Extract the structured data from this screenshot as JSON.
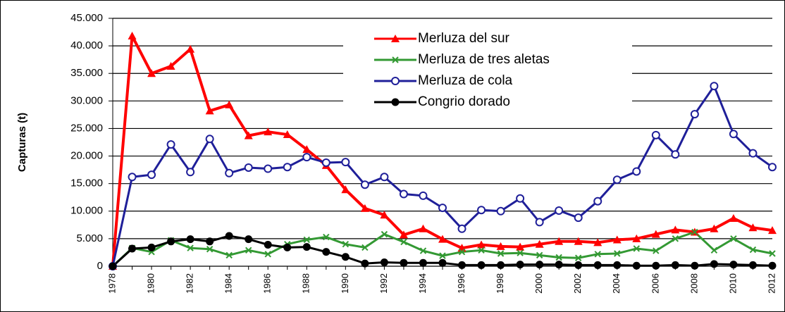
{
  "chart_data": {
    "type": "line",
    "y_label": "Capturas (t)",
    "categories": [
      "1978",
      null,
      "1980",
      null,
      "1982",
      null,
      "1984",
      null,
      "1986",
      null,
      "1988",
      null,
      "1990",
      null,
      "1992",
      null,
      "1994",
      null,
      "1996",
      null,
      "1998",
      null,
      "2000",
      null,
      "2002",
      null,
      "2004",
      null,
      "2006",
      null,
      "2008",
      null,
      "2010",
      null,
      "2012"
    ],
    "ylim": [
      0,
      45000
    ],
    "yticks": [
      0,
      {
        "value": 5000,
        "label": "5.000"
      },
      {
        "value": 10000,
        "label": "10.000"
      },
      {
        "value": 15000,
        "label": "15.000"
      },
      {
        "value": 20000,
        "label": "20.000"
      },
      {
        "value": 25000,
        "label": "25.000"
      },
      {
        "value": 30000,
        "label": "30.000"
      },
      {
        "value": 35000,
        "label": "35.000"
      },
      {
        "value": 40000,
        "label": "40.000"
      },
      {
        "value": 45000,
        "label": "45.000"
      }
    ],
    "grid": true,
    "legend": "upper center",
    "series": [
      {
        "name": "Merluza del sur",
        "color": "#ff0000",
        "marker": "triangle",
        "values": [
          0,
          41800,
          35000,
          36300,
          39400,
          28200,
          29300,
          23700,
          24400,
          23900,
          21200,
          18300,
          13900,
          10500,
          9300,
          5700,
          6800,
          4900,
          3300,
          3900,
          3600,
          3500,
          4000,
          4500,
          4500,
          4300,
          4800,
          5000,
          5800,
          6600,
          6200,
          6800,
          8700,
          7000,
          6500
        ]
      },
      {
        "name": "Merluza de tres aletas",
        "color": "#339933",
        "marker": "x",
        "values": [
          0,
          3300,
          2600,
          4700,
          3300,
          3100,
          2000,
          2900,
          2200,
          4000,
          4800,
          5300,
          4000,
          3400,
          5800,
          4400,
          2800,
          1900,
          2600,
          2900,
          2300,
          2400,
          2000,
          1600,
          1500,
          2200,
          2300,
          3200,
          2800,
          5000,
          6200,
          2900,
          5000,
          3000,
          2300
        ]
      },
      {
        "name": "Merluza de cola",
        "color": "#1f1f99",
        "marker": "open-circle",
        "values": [
          0,
          16200,
          16600,
          22100,
          17100,
          23100,
          16900,
          17900,
          17700,
          18000,
          19800,
          18800,
          18900,
          14800,
          16200,
          13100,
          12800,
          10600,
          6800,
          10200,
          10000,
          12300,
          8000,
          10100,
          8800,
          11800,
          15700,
          17200,
          23800,
          20300,
          27600,
          32700,
          24000,
          20500,
          18000
        ]
      },
      {
        "name": "Congrio dorado",
        "color": "#000000",
        "marker": "circle",
        "values": [
          0,
          3200,
          3400,
          4500,
          4900,
          4500,
          5500,
          4900,
          3900,
          3400,
          3500,
          2600,
          1700,
          500,
          700,
          600,
          600,
          600,
          200,
          200,
          200,
          300,
          300,
          300,
          200,
          200,
          200,
          100,
          100,
          200,
          100,
          400,
          300,
          200,
          100
        ]
      }
    ]
  }
}
